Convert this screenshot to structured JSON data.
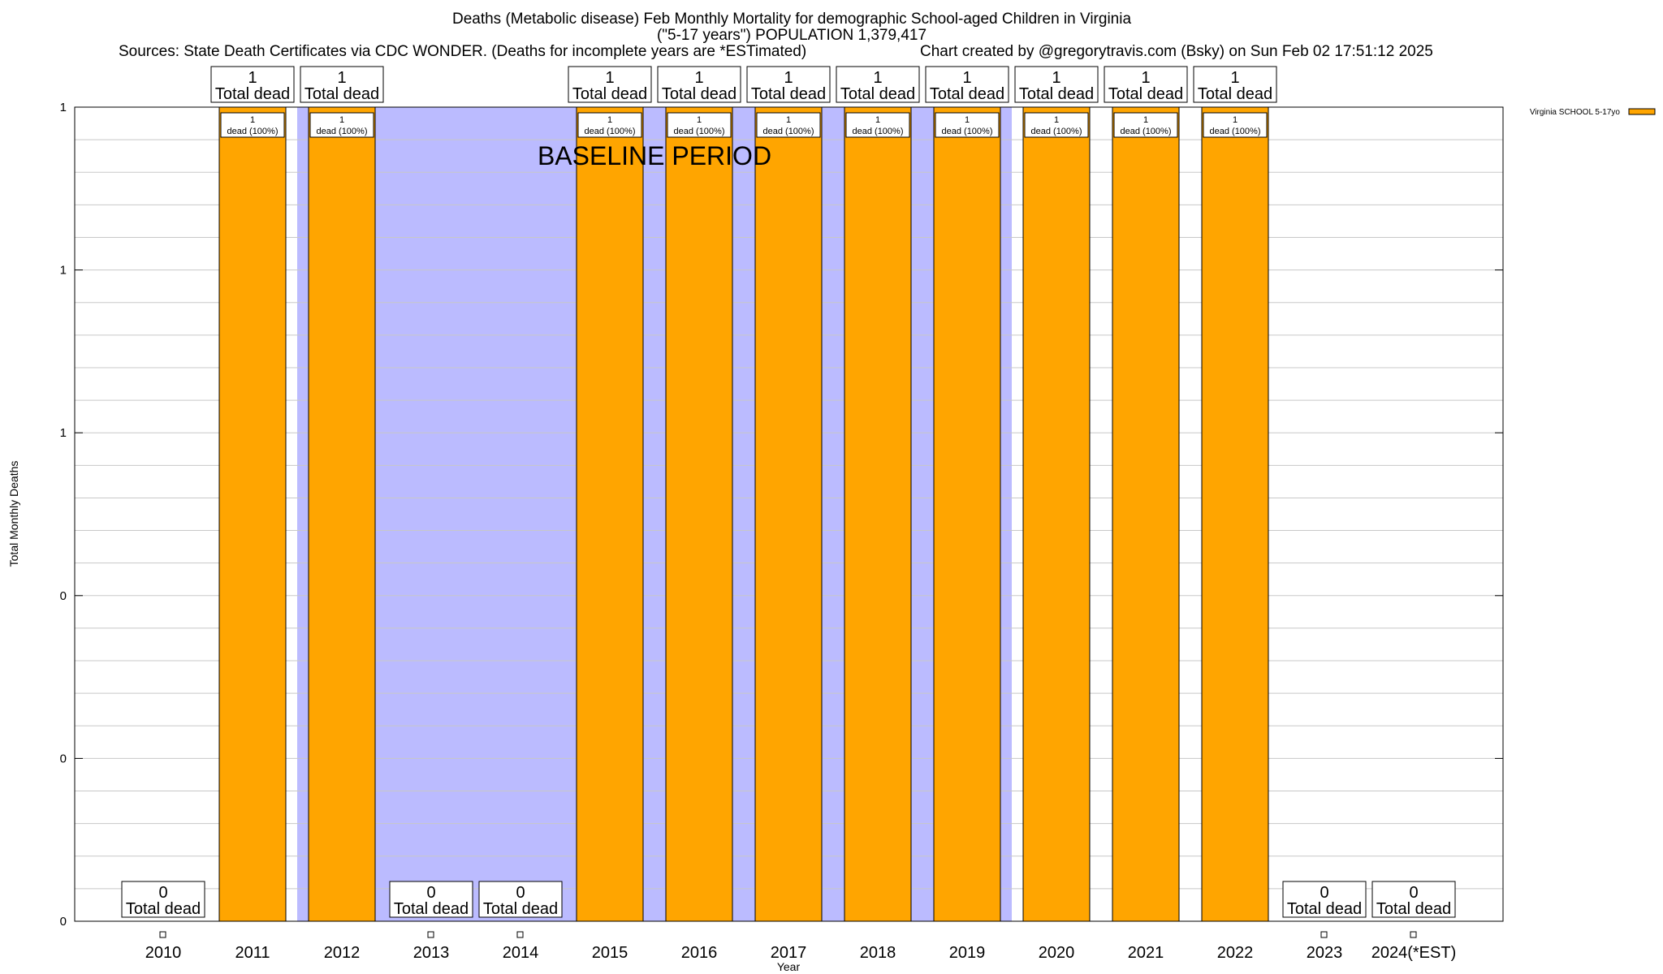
{
  "header": {
    "title_line1": "Deaths (Metabolic disease) Feb Monthly Mortality for demographic School-aged Children in Virginia",
    "title_line2": "(\"5-17 years\") POPULATION 1,379,417",
    "sources": "Sources: State Death Certificates via CDC WONDER. (Deaths for incomplete years are *ESTimated)",
    "credit": "Chart created by @gregorytravis.com (Bsky) on Sun Feb 02 17:51:12 2025"
  },
  "chart_data": {
    "type": "bar",
    "xlabel": "Year",
    "ylabel": "Total Monthly Deaths",
    "ylim": [
      0,
      1
    ],
    "y_tick_labels": [
      "0",
      "0",
      "0",
      "1",
      "1",
      "1"
    ],
    "grid": true,
    "legend_position": "top-right",
    "baseline_label": "BASELINE PERIOD",
    "baseline_range": [
      "2012",
      "2019"
    ],
    "categories": [
      "2010",
      "2011",
      "2012",
      "2013",
      "2014",
      "2015",
      "2016",
      "2017",
      "2018",
      "2019",
      "2020",
      "2021",
      "2022",
      "2023",
      "2024(*EST)"
    ],
    "series": [
      {
        "name": "Virginia SCHOOL 5-17yo",
        "color": "#ffa500",
        "values": [
          0,
          1,
          1,
          0,
          0,
          1,
          1,
          1,
          1,
          1,
          1,
          1,
          1,
          0,
          0
        ]
      }
    ],
    "total_label_suffix": "Total dead",
    "inner_label_percent": "dead (100%)"
  },
  "colors": {
    "bar": "#ffa500",
    "baseline": "#bbbbff",
    "grid": "#c8c8c8"
  }
}
